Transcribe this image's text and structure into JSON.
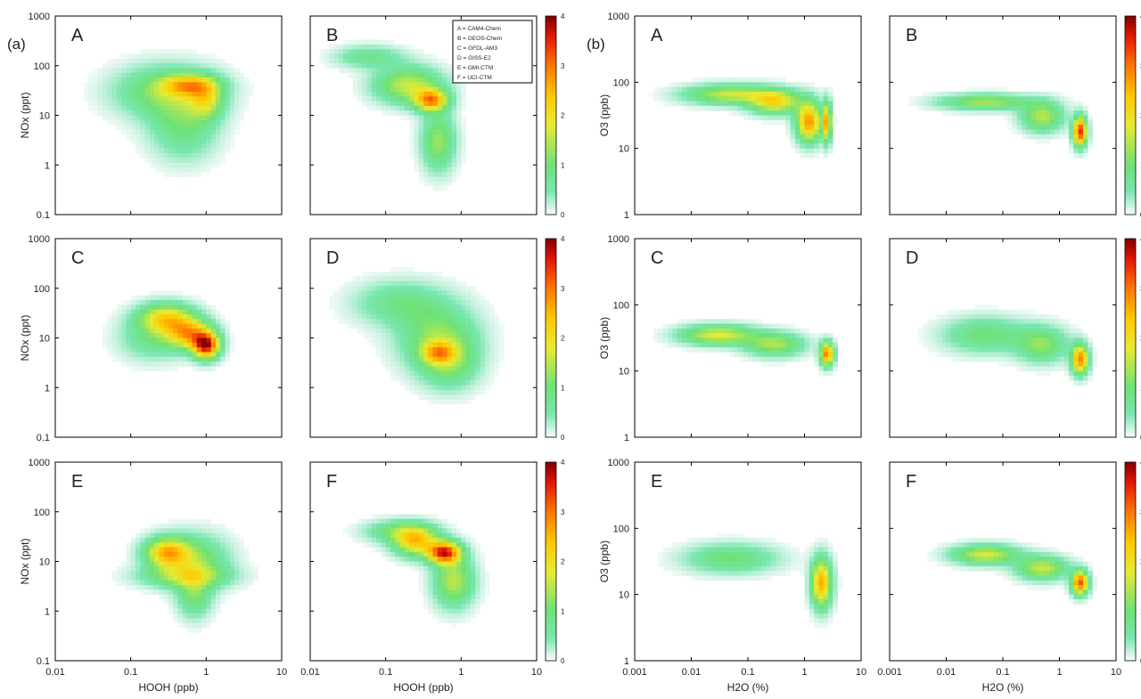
{
  "figure": {
    "panel_a_label": "(a)",
    "panel_b_label": "(b)",
    "legend_lines": [
      "A = CAM4-Chem",
      "B = GEOS-Chem",
      "C = GFDL-AM3",
      "D = GISS-E2",
      "E = GMI-CTM",
      "F = UCI-CTM"
    ]
  },
  "chart_data": [
    {
      "type": "heatmap",
      "panel": "(a)",
      "xlabel": "HOOH (ppb)",
      "ylabel": "NOx (ppt)",
      "x_scale": "log",
      "y_scale": "log",
      "xlim": [
        0.01,
        10
      ],
      "ylim": [
        0.1,
        1000
      ],
      "x_ticks": [
        "0.01",
        "0.1",
        "1",
        "10"
      ],
      "y_ticks": [
        "0.1",
        "1",
        "10",
        "100",
        "1000"
      ],
      "colorbar_ticks": [
        "0",
        "1",
        "2",
        "3",
        "4"
      ],
      "colorbar_range": [
        0,
        4
      ],
      "subplots": [
        {
          "label": "A",
          "model": "CAM4-Chem",
          "density_blobs": [
            {
              "x": 0.3,
              "y": 30,
              "sx": 0.45,
              "sy": 0.35,
              "value": 1.2
            },
            {
              "x": 0.5,
              "y": 6,
              "sx": 0.3,
              "sy": 0.45,
              "value": 0.9
            },
            {
              "x": 1.0,
              "y": 20,
              "sx": 0.15,
              "sy": 0.25,
              "value": 1.3
            },
            {
              "x": 0.6,
              "y": 40,
              "sx": 0.25,
              "sy": 0.15,
              "value": 1.8
            }
          ]
        },
        {
          "label": "B",
          "model": "GEOS-Chem",
          "density_blobs": [
            {
              "x": 0.2,
              "y": 40,
              "sx": 0.3,
              "sy": 0.25,
              "value": 1.6
            },
            {
              "x": 0.4,
              "y": 20,
              "sx": 0.15,
              "sy": 0.15,
              "value": 2.6
            },
            {
              "x": 0.5,
              "y": 3,
              "sx": 0.15,
              "sy": 0.4,
              "value": 1.3
            },
            {
              "x": 0.06,
              "y": 150,
              "sx": 0.3,
              "sy": 0.15,
              "value": 0.8
            }
          ]
        },
        {
          "label": "C",
          "model": "GFDL-AM3",
          "density_blobs": [
            {
              "x": 0.3,
              "y": 25,
              "sx": 0.25,
              "sy": 0.2,
              "value": 2.0
            },
            {
              "x": 1.0,
              "y": 7,
              "sx": 0.12,
              "sy": 0.18,
              "value": 3.5
            },
            {
              "x": 0.6,
              "y": 12,
              "sx": 0.2,
              "sy": 0.2,
              "value": 2.3
            },
            {
              "x": 0.2,
              "y": 10,
              "sx": 0.3,
              "sy": 0.3,
              "value": 0.8
            }
          ]
        },
        {
          "label": "D",
          "model": "GISS-E2",
          "density_blobs": [
            {
              "x": 0.5,
              "y": 10,
              "sx": 0.35,
              "sy": 0.45,
              "value": 1.2
            },
            {
              "x": 0.15,
              "y": 50,
              "sx": 0.4,
              "sy": 0.3,
              "value": 0.8
            },
            {
              "x": 0.7,
              "y": 3,
              "sx": 0.25,
              "sy": 0.35,
              "value": 0.9
            },
            {
              "x": 0.5,
              "y": 5,
              "sx": 0.15,
              "sy": 0.15,
              "value": 1.6
            }
          ]
        },
        {
          "label": "E",
          "model": "GMI-CTM",
          "density_blobs": [
            {
              "x": 0.3,
              "y": 15,
              "sx": 0.2,
              "sy": 0.2,
              "value": 2.3
            },
            {
              "x": 0.7,
              "y": 10,
              "sx": 0.3,
              "sy": 0.35,
              "value": 1.2
            },
            {
              "x": 0.5,
              "y": 5,
              "sx": 0.4,
              "sy": 0.15,
              "value": 1.1
            },
            {
              "x": 0.7,
              "y": 2,
              "sx": 0.15,
              "sy": 0.3,
              "value": 1.0
            }
          ]
        },
        {
          "label": "F",
          "model": "UCI-CTM",
          "density_blobs": [
            {
              "x": 0.25,
              "y": 25,
              "sx": 0.2,
              "sy": 0.2,
              "value": 2.2
            },
            {
              "x": 0.6,
              "y": 15,
              "sx": 0.15,
              "sy": 0.15,
              "value": 3.4
            },
            {
              "x": 0.8,
              "y": 4,
              "sx": 0.18,
              "sy": 0.35,
              "value": 1.5
            },
            {
              "x": 0.15,
              "y": 40,
              "sx": 0.3,
              "sy": 0.15,
              "value": 1.0
            }
          ]
        }
      ]
    },
    {
      "type": "heatmap",
      "panel": "(b)",
      "xlabel": "H2O  (%)",
      "ylabel": "O3 (ppb)",
      "x_scale": "log",
      "y_scale": "log",
      "xlim": [
        0.001,
        10
      ],
      "ylim": [
        1,
        1000
      ],
      "x_ticks": [
        "0.001",
        "0.01",
        "0.1",
        "1",
        "10"
      ],
      "y_ticks": [
        "1",
        "10",
        "100",
        "1000"
      ],
      "colorbar_ticks": [
        "0",
        "1",
        "2",
        "3",
        "4"
      ],
      "colorbar_range": [
        0,
        4
      ],
      "subplots": [
        {
          "label": "A",
          "model": "CAM4-Chem",
          "density_blobs": [
            {
              "x": 0.05,
              "y": 65,
              "sx": 0.55,
              "sy": 0.1,
              "value": 1.6
            },
            {
              "x": 0.3,
              "y": 50,
              "sx": 0.3,
              "sy": 0.12,
              "value": 2.0
            },
            {
              "x": 1.2,
              "y": 25,
              "sx": 0.15,
              "sy": 0.2,
              "value": 2.8
            },
            {
              "x": 2.5,
              "y": 25,
              "sx": 0.05,
              "sy": 0.2,
              "value": 2.5
            }
          ]
        },
        {
          "label": "B",
          "model": "GEOS-Chem",
          "density_blobs": [
            {
              "x": 0.05,
              "y": 50,
              "sx": 0.55,
              "sy": 0.08,
              "value": 1.4
            },
            {
              "x": 0.5,
              "y": 30,
              "sx": 0.25,
              "sy": 0.15,
              "value": 1.5
            },
            {
              "x": 2.3,
              "y": 18,
              "sx": 0.08,
              "sy": 0.15,
              "value": 3.5
            }
          ]
        },
        {
          "label": "C",
          "model": "GFDL-AM3",
          "density_blobs": [
            {
              "x": 0.03,
              "y": 35,
              "sx": 0.45,
              "sy": 0.1,
              "value": 1.8
            },
            {
              "x": 0.3,
              "y": 25,
              "sx": 0.35,
              "sy": 0.12,
              "value": 1.4
            },
            {
              "x": 2.5,
              "y": 18,
              "sx": 0.08,
              "sy": 0.12,
              "value": 3.0
            }
          ]
        },
        {
          "label": "D",
          "model": "GISS-E2",
          "density_blobs": [
            {
              "x": 0.05,
              "y": 35,
              "sx": 0.5,
              "sy": 0.18,
              "value": 1.0
            },
            {
              "x": 0.5,
              "y": 25,
              "sx": 0.3,
              "sy": 0.18,
              "value": 1.2
            },
            {
              "x": 2.3,
              "y": 15,
              "sx": 0.1,
              "sy": 0.15,
              "value": 2.9
            }
          ]
        },
        {
          "label": "E",
          "model": "GMI-CTM",
          "density_blobs": [
            {
              "x": 0.05,
              "y": 35,
              "sx": 0.55,
              "sy": 0.15,
              "value": 1.0
            },
            {
              "x": 2.0,
              "y": 15,
              "sx": 0.12,
              "sy": 0.25,
              "value": 2.6
            }
          ]
        },
        {
          "label": "F",
          "model": "UCI-CTM",
          "density_blobs": [
            {
              "x": 0.05,
              "y": 40,
              "sx": 0.4,
              "sy": 0.1,
              "value": 1.7
            },
            {
              "x": 0.5,
              "y": 25,
              "sx": 0.3,
              "sy": 0.12,
              "value": 1.6
            },
            {
              "x": 2.3,
              "y": 15,
              "sx": 0.1,
              "sy": 0.12,
              "value": 3.2
            }
          ]
        }
      ]
    }
  ]
}
